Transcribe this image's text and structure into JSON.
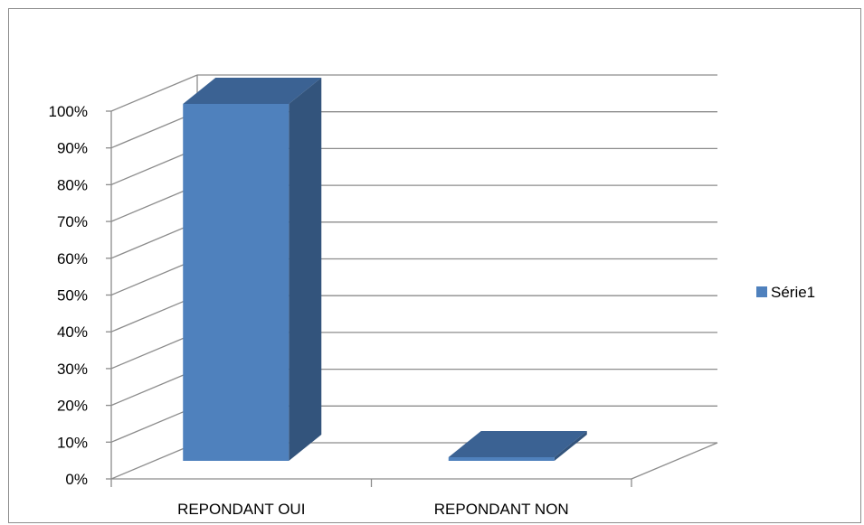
{
  "chart_data": {
    "type": "bar",
    "categories": [
      "REPONDANT OUI",
      "REPONDANT NON"
    ],
    "series": [
      {
        "name": "Série1",
        "values": [
          99,
          1
        ],
        "color": "#4f81bd"
      }
    ],
    "y_ticks": [
      "0%",
      "10%",
      "20%",
      "30%",
      "40%",
      "50%",
      "60%",
      "70%",
      "80%",
      "90%",
      "100%"
    ],
    "ylim": [
      0,
      100
    ],
    "grid": true,
    "legend_position": "right",
    "colors": {
      "front": "#4f81bd",
      "top": "#3b6293",
      "side": "#33547c",
      "grid": "#8c8c8c"
    }
  }
}
